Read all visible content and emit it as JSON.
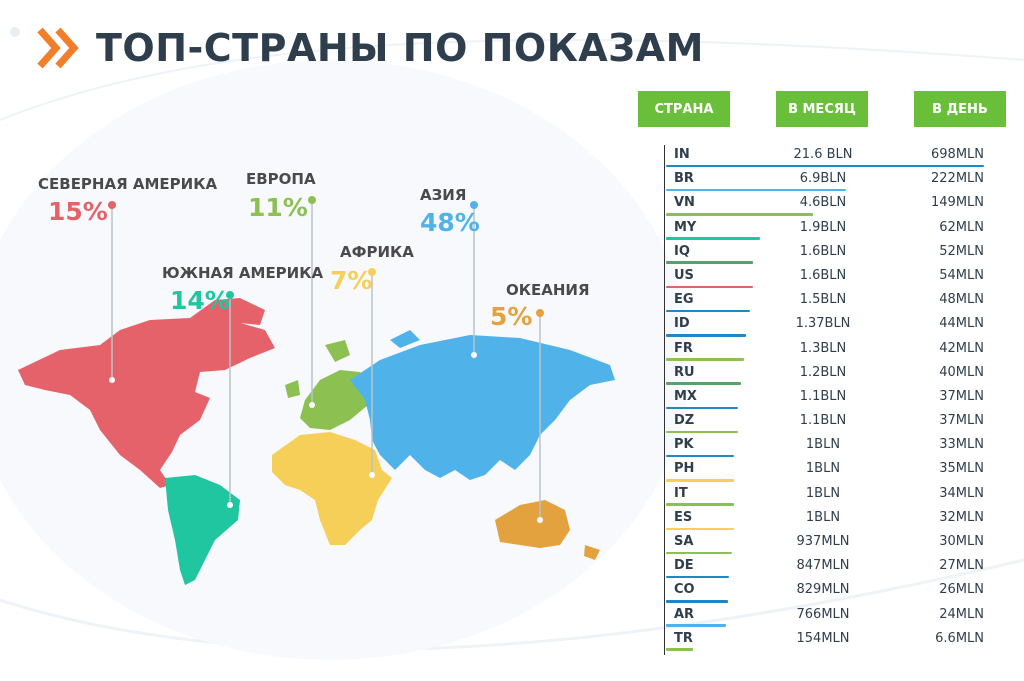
{
  "title": "ТОП-СТРАНЫ ПО ПОКАЗАМ",
  "colors": {
    "north_america": "#e5626b",
    "south_america": "#1fc6a0",
    "europe": "#8cc152",
    "africa": "#f5cf57",
    "asia": "#4fb3ea",
    "oceania": "#e3a23d",
    "header_green": "#6abf3a",
    "chevron": "#f07e2a"
  },
  "regions": [
    {
      "name": "СЕВЕРНАЯ АМЕРИКА",
      "pct": "15%",
      "color": "#e5626b"
    },
    {
      "name": "ЕВРОПА",
      "pct": "11%",
      "color": "#8cc152"
    },
    {
      "name": "АЗИЯ",
      "pct": "48%",
      "color": "#4fb3ea"
    },
    {
      "name": "ЮЖНАЯ АМЕРИКА",
      "pct": "14%",
      "color": "#1fc6a0"
    },
    {
      "name": "АФРИКА",
      "pct": "7%",
      "color": "#f5cf57"
    },
    {
      "name": "ОКЕАНИЯ",
      "pct": "5%",
      "color": "#e3a23d"
    }
  ],
  "table": {
    "headers": {
      "country": "СТРАНА",
      "month": "В МЕСЯЦ",
      "day": "В ДЕНЬ"
    },
    "rows": [
      {
        "code": "IN",
        "month": "21.6 BLN",
        "day": "698MLN",
        "month_value_bln": 21.6,
        "color": "#1e88c7"
      },
      {
        "code": "BR",
        "month": "6.9BLN",
        "day": "222MLN",
        "month_value_bln": 6.9,
        "color": "#4fb3ea"
      },
      {
        "code": "VN",
        "month": "4.6BLN",
        "day": "149MLN",
        "month_value_bln": 4.6,
        "color": "#8cc152"
      },
      {
        "code": "MY",
        "month": "1.9BLN",
        "day": "62MLN",
        "month_value_bln": 1.9,
        "color": "#1fc6a0"
      },
      {
        "code": "IQ",
        "month": "1.6BLN",
        "day": "52MLN",
        "month_value_bln": 1.6,
        "color": "#5aa06a"
      },
      {
        "code": "US",
        "month": "1.6BLN",
        "day": "54MLN",
        "month_value_bln": 1.6,
        "color": "#e5626b"
      },
      {
        "code": "EG",
        "month": "1.5BLN",
        "day": "48MLN",
        "month_value_bln": 1.5,
        "color": "#1e88c7"
      },
      {
        "code": "ID",
        "month": "1.37BLN",
        "day": "44MLN",
        "month_value_bln": 1.37,
        "color": "#1e88c7"
      },
      {
        "code": "FR",
        "month": "1.3BLN",
        "day": "42MLN",
        "month_value_bln": 1.3,
        "color": "#8cc152"
      },
      {
        "code": "RU",
        "month": "1.2BLN",
        "day": "40MLN",
        "month_value_bln": 1.2,
        "color": "#5aa06a"
      },
      {
        "code": "MX",
        "month": "1.1BLN",
        "day": "37MLN",
        "month_value_bln": 1.1,
        "color": "#1e88c7"
      },
      {
        "code": "DZ",
        "month": "1.1BLN",
        "day": "37MLN",
        "month_value_bln": 1.1,
        "color": "#8cc152"
      },
      {
        "code": "PK",
        "month": "1BLN",
        "day": "33MLN",
        "month_value_bln": 1.0,
        "color": "#1e88c7"
      },
      {
        "code": "PH",
        "month": "1BLN",
        "day": "35MLN",
        "month_value_bln": 1.0,
        "color": "#f5cf57"
      },
      {
        "code": "IT",
        "month": "1BLN",
        "day": "34MLN",
        "month_value_bln": 1.0,
        "color": "#8cc152"
      },
      {
        "code": "ES",
        "month": "1BLN",
        "day": "32MLN",
        "month_value_bln": 1.0,
        "color": "#f5cf57"
      },
      {
        "code": "SA",
        "month": "937MLN",
        "day": "30MLN",
        "month_value_bln": 0.937,
        "color": "#8cc152"
      },
      {
        "code": "DE",
        "month": "847MLN",
        "day": "27MLN",
        "month_value_bln": 0.847,
        "color": "#1e88c7"
      },
      {
        "code": "CO",
        "month": "829MLN",
        "day": "26MLN",
        "month_value_bln": 0.829,
        "color": "#1e88c7"
      },
      {
        "code": "AR",
        "month": "766MLN",
        "day": "24MLN",
        "month_value_bln": 0.766,
        "color": "#4fb3ea"
      },
      {
        "code": "TR",
        "month": "154MLN",
        "day": "6.6MLN",
        "month_value_bln": 0.154,
        "color": "#8cc152"
      }
    ]
  },
  "chart_data": {
    "type": "table",
    "title": "ТОП-СТРАНЫ ПО ПОКАЗАМ",
    "regions": [
      {
        "name": "СЕВЕРНАЯ АМЕРИКА",
        "value": 15
      },
      {
        "name": "ЕВРОПА",
        "value": 11
      },
      {
        "name": "АЗИЯ",
        "value": 48
      },
      {
        "name": "ЮЖНАЯ АМЕРИКА",
        "value": 14
      },
      {
        "name": "АФРИКА",
        "value": 7
      },
      {
        "name": "ОКЕАНИЯ",
        "value": 5
      }
    ],
    "columns": [
      "СТРАНА",
      "В МЕСЯЦ",
      "В ДЕНЬ"
    ],
    "rows": [
      [
        "IN",
        "21.6 BLN",
        "698MLN"
      ],
      [
        "BR",
        "6.9BLN",
        "222MLN"
      ],
      [
        "VN",
        "4.6BLN",
        "149MLN"
      ],
      [
        "MY",
        "1.9BLN",
        "62MLN"
      ],
      [
        "IQ",
        "1.6BLN",
        "52MLN"
      ],
      [
        "US",
        "1.6BLN",
        "54MLN"
      ],
      [
        "EG",
        "1.5BLN",
        "48MLN"
      ],
      [
        "ID",
        "1.37BLN",
        "44MLN"
      ],
      [
        "FR",
        "1.3BLN",
        "42MLN"
      ],
      [
        "RU",
        "1.2BLN",
        "40MLN"
      ],
      [
        "MX",
        "1.1BLN",
        "37MLN"
      ],
      [
        "DZ",
        "1.1BLN",
        "37MLN"
      ],
      [
        "PK",
        "1BLN",
        "33MLN"
      ],
      [
        "PH",
        "1BLN",
        "35MLN"
      ],
      [
        "IT",
        "1BLN",
        "34MLN"
      ],
      [
        "ES",
        "1BLN",
        "32MLN"
      ],
      [
        "SA",
        "937MLN",
        "30MLN"
      ],
      [
        "DE",
        "847MLN",
        "27MLN"
      ],
      [
        "CO",
        "829MLN",
        "26MLN"
      ],
      [
        "AR",
        "766MLN",
        "24MLN"
      ],
      [
        "TR",
        "154MLN",
        "6.6MLN"
      ]
    ]
  }
}
